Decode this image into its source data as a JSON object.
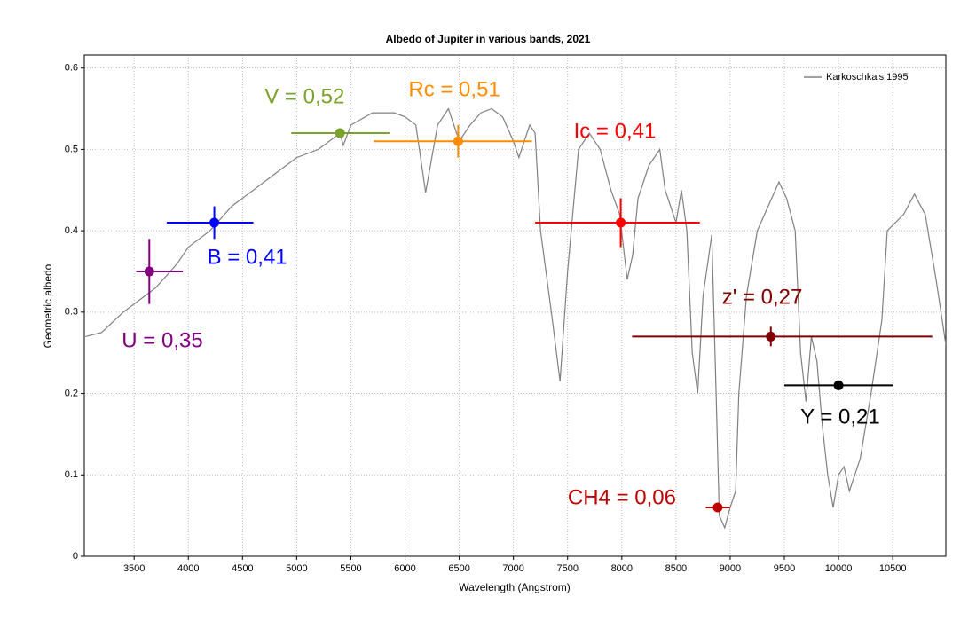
{
  "chart_data": {
    "type": "line",
    "title": "Albedo of Jupiter in various bands, 2021",
    "x_label": "Wavelength (Angstrom)",
    "y_label": "Geometric albedo",
    "xlim": [
      3040,
      10990
    ],
    "ylim": [
      0,
      0.616
    ],
    "xticks": [
      3500,
      4000,
      4500,
      5000,
      5500,
      6000,
      6500,
      7000,
      7500,
      8000,
      8500,
      9000,
      9500,
      10000,
      10500
    ],
    "yticks": [
      0,
      0.1,
      0.2,
      0.3,
      0.4,
      0.5,
      0.6
    ],
    "grid": true,
    "legend": "upper right",
    "series": [
      {
        "name": "Karkoschka's 1995",
        "color": "#808080",
        "x": [
          3050,
          3200,
          3400,
          3600,
          3700,
          3800,
          3900,
          4000,
          4200,
          4400,
          4600,
          4800,
          5000,
          5200,
          5400,
          5430,
          5500,
          5700,
          5900,
          6000,
          6100,
          6190,
          6300,
          6400,
          6500,
          6600,
          6700,
          6800,
          6900,
          7000,
          7050,
          7150,
          7200,
          7250,
          7350,
          7430,
          7500,
          7600,
          7700,
          7800,
          7900,
          7980,
          8050,
          8100,
          8150,
          8250,
          8350,
          8400,
          8500,
          8550,
          8600,
          8650,
          8700,
          8750,
          8830,
          8870,
          8900,
          8950,
          9000,
          9050,
          9080,
          9150,
          9250,
          9350,
          9450,
          9520,
          9600,
          9650,
          9700,
          9750,
          9800,
          9850,
          9900,
          9950,
          10000,
          10050,
          10100,
          10200,
          10300,
          10400,
          10450,
          10600,
          10700,
          10800,
          10900,
          10990
        ],
        "values": [
          0.27,
          0.275,
          0.3,
          0.32,
          0.33,
          0.345,
          0.36,
          0.38,
          0.4,
          0.43,
          0.45,
          0.47,
          0.49,
          0.5,
          0.52,
          0.505,
          0.53,
          0.545,
          0.545,
          0.54,
          0.53,
          0.447,
          0.53,
          0.55,
          0.51,
          0.53,
          0.545,
          0.55,
          0.54,
          0.51,
          0.49,
          0.53,
          0.52,
          0.4,
          0.3,
          0.215,
          0.35,
          0.5,
          0.52,
          0.5,
          0.45,
          0.42,
          0.34,
          0.37,
          0.44,
          0.48,
          0.5,
          0.45,
          0.41,
          0.45,
          0.4,
          0.25,
          0.2,
          0.32,
          0.395,
          0.2,
          0.05,
          0.035,
          0.06,
          0.08,
          0.2,
          0.32,
          0.4,
          0.43,
          0.46,
          0.44,
          0.4,
          0.25,
          0.19,
          0.27,
          0.24,
          0.16,
          0.1,
          0.06,
          0.1,
          0.11,
          0.08,
          0.12,
          0.2,
          0.29,
          0.4,
          0.42,
          0.445,
          0.42,
          0.34,
          0.26
        ]
      }
    ],
    "bands": [
      {
        "label": "U = 0,35",
        "color": "#800080",
        "x": 3640,
        "y": 0.35,
        "xerr": [
          120,
          310
        ],
        "yerr": 0.04
      },
      {
        "label": "B = 0,41",
        "color": "#0000ff",
        "x": 4240,
        "y": 0.41,
        "xerr": [
          440,
          360
        ],
        "yerr": 0.02
      },
      {
        "label": "V = 0,52",
        "color": "#7aa32b",
        "x": 5400,
        "y": 0.52,
        "xerr": [
          450,
          460
        ],
        "yerr": 0.006
      },
      {
        "label": "Rc = 0,51",
        "color": "#ff8c00",
        "x": 6490,
        "y": 0.51,
        "xerr": [
          780,
          680
        ],
        "yerr": 0.02
      },
      {
        "label": "Ic = 0,41",
        "color": "#ff0000",
        "x": 7990,
        "y": 0.41,
        "xerr": [
          790,
          730
        ],
        "yerr": 0.03
      },
      {
        "label": "CH4 = 0,06",
        "color": "#c00000",
        "x": 8885,
        "y": 0.06,
        "xerr": [
          110,
          110
        ],
        "yerr": 0.003
      },
      {
        "label": "z' = 0,27",
        "color": "#800000",
        "x": 9375,
        "y": 0.27,
        "xerr": [
          1280,
          1490
        ],
        "yerr": 0.012
      },
      {
        "label": "Y = 0,21",
        "color": "#000000",
        "x": 10000,
        "y": 0.21,
        "xerr": [
          500,
          500
        ],
        "yerr": 0.003
      }
    ]
  }
}
